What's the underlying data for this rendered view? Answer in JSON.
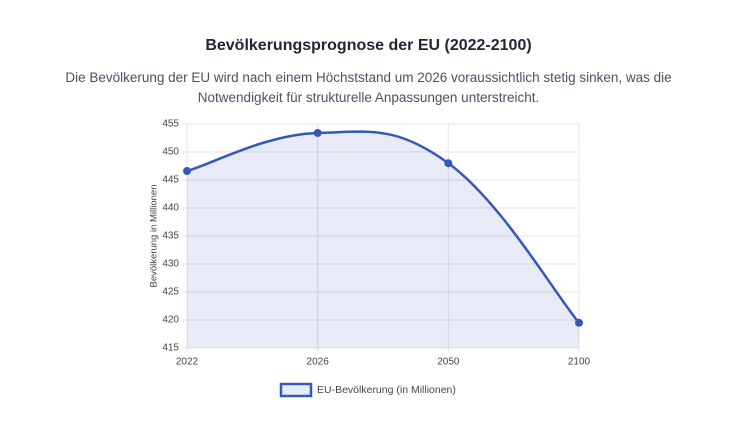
{
  "chart_data": {
    "type": "line",
    "title": "Bevölkerungsprognose der EU (2022-2100)",
    "subtitle": "Die Bevölkerung der EU wird nach einem Höchststand um 2026 voraussichtlich stetig sinken, was die Notwendigkeit für strukturelle Anpassungen unterstreicht.",
    "y_label": "Bevölkerung in Millionen",
    "categories": [
      "2022",
      "2026",
      "2050",
      "2100"
    ],
    "series": [
      {
        "name": "EU-Bevölkerung (in Millionen)",
        "color": "#3358b8",
        "values": [
          446.6,
          453.4,
          448.0,
          419.5
        ]
      }
    ],
    "ylim": [
      415,
      455
    ],
    "yticks": [
      415,
      420,
      425,
      430,
      435,
      440,
      445,
      450,
      455
    ],
    "grid": true,
    "fill": true,
    "legend": "bottom"
  }
}
